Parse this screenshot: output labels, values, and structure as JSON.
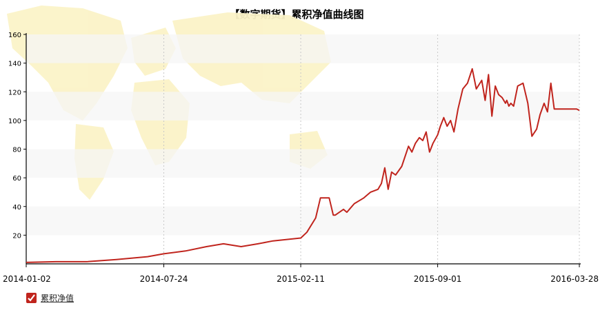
{
  "chart_data": {
    "type": "line",
    "title": "【数字期货】累积净值曲线图",
    "xlabel": "",
    "ylabel": "",
    "ylim": [
      0,
      160
    ],
    "y_ticks": [
      20,
      40,
      60,
      80,
      100,
      120,
      140,
      160
    ],
    "x_tick_labels": [
      "2014-01-02",
      "2014-07-24",
      "2015-02-11",
      "2015-09-01",
      "2016-03-28"
    ],
    "grid": "vertical dotted lines at x ticks, alternating horizontal bands",
    "legend_position": "bottom-left",
    "series": [
      {
        "name": "累积净值",
        "color": "#c0241d",
        "x": [
          "2014-01-02",
          "2014-02-15",
          "2014-04-01",
          "2014-05-15",
          "2014-06-30",
          "2014-07-24",
          "2014-08-25",
          "2014-09-25",
          "2014-10-20",
          "2014-11-15",
          "2014-12-10",
          "2015-01-01",
          "2015-02-11",
          "2015-02-20",
          "2015-03-05",
          "2015-03-12",
          "2015-03-25",
          "2015-03-31",
          "2015-04-03",
          "2015-04-15",
          "2015-04-20",
          "2015-05-01",
          "2015-05-15",
          "2015-05-25",
          "2015-06-05",
          "2015-06-10",
          "2015-06-15",
          "2015-06-20",
          "2015-06-25",
          "2015-07-01",
          "2015-07-10",
          "2015-07-20",
          "2015-07-25",
          "2015-07-30",
          "2015-08-05",
          "2015-08-10",
          "2015-08-15",
          "2015-08-20",
          "2015-08-25",
          "2015-09-01",
          "2015-09-05",
          "2015-09-10",
          "2015-09-15",
          "2015-09-20",
          "2015-09-25",
          "2015-10-01",
          "2015-10-08",
          "2015-10-15",
          "2015-10-22",
          "2015-10-28",
          "2015-11-05",
          "2015-11-10",
          "2015-11-15",
          "2015-11-20",
          "2015-11-25",
          "2015-11-30",
          "2015-12-05",
          "2015-12-10",
          "2015-12-12",
          "2015-12-15",
          "2015-12-18",
          "2015-12-22",
          "2015-12-28",
          "2016-01-05",
          "2016-01-12",
          "2016-01-18",
          "2016-01-25",
          "2016-01-30",
          "2016-02-05",
          "2016-02-10",
          "2016-02-15",
          "2016-02-20",
          "2016-02-25",
          "2016-03-01",
          "2016-03-05",
          "2016-03-10",
          "2016-03-15",
          "2016-03-20",
          "2016-03-24",
          "2016-03-28"
        ],
        "values": [
          1,
          1.5,
          1.5,
          3,
          5,
          7,
          9,
          12,
          14,
          12,
          14,
          16,
          18,
          22,
          32,
          46,
          46,
          34,
          34,
          38,
          36,
          42,
          46,
          50,
          52,
          56,
          67,
          52,
          64,
          62,
          68,
          82,
          78,
          84,
          88,
          86,
          92,
          78,
          84,
          90,
          96,
          102,
          96,
          100,
          92,
          108,
          122,
          126,
          136,
          122,
          128,
          114,
          132,
          103,
          124,
          118,
          116,
          112,
          114,
          110,
          112,
          110,
          124,
          126,
          112,
          89,
          94,
          104,
          112,
          106,
          126,
          108,
          108,
          108,
          108,
          108,
          108,
          108,
          108,
          107
        ]
      }
    ]
  }
}
